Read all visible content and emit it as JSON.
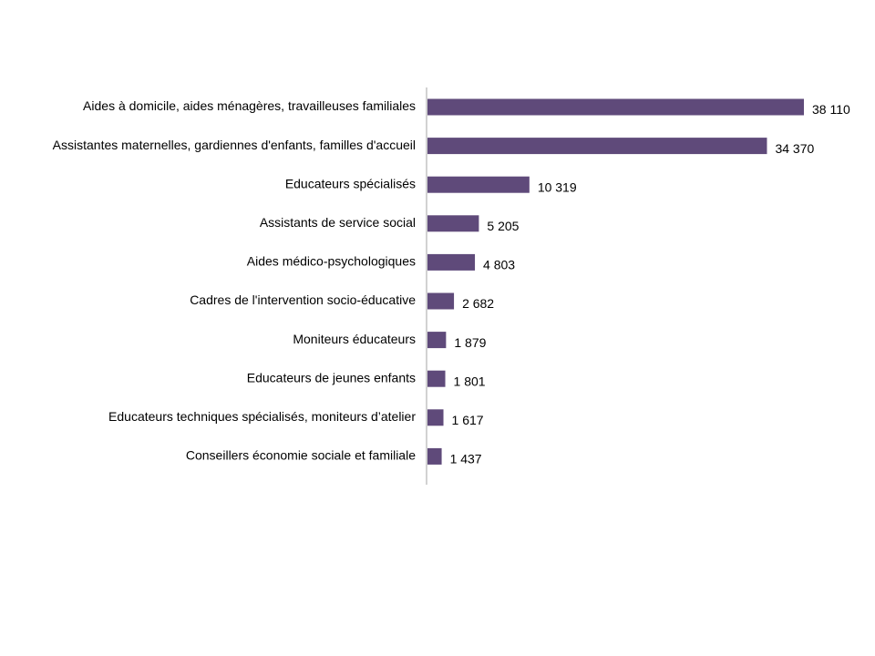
{
  "chart_data": {
    "type": "bar",
    "orientation": "horizontal",
    "categories": [
      "Aides à domicile, aides ménagères, travailleuses familiales",
      "Assistantes maternelles, gardiennes d'enfants, familles d'accueil",
      "Educateurs spécialisés",
      "Assistants de service social",
      "Aides médico-psychologiques",
      "Cadres de l'intervention socio-éducative",
      "Moniteurs éducateurs",
      "Educateurs de jeunes enfants",
      "Educateurs techniques spécialisés, moniteurs d’atelier",
      "Conseillers économie sociale et familiale"
    ],
    "values": [
      38110,
      34370,
      10319,
      5205,
      4803,
      2682,
      1879,
      1801,
      1617,
      1437
    ],
    "value_labels": [
      "38 110",
      "34 370",
      "10 319",
      "5 205",
      "4 803",
      "2 682",
      "1 879",
      "1 801",
      "1 617",
      "1 437"
    ],
    "xlim": [
      0,
      38110
    ],
    "grid": false,
    "legend": "none",
    "title": "",
    "xlabel": "",
    "ylabel": "",
    "colors": {
      "bar": "#5f4a7a",
      "axis": "#a6a6a6",
      "text": "#000000"
    }
  }
}
